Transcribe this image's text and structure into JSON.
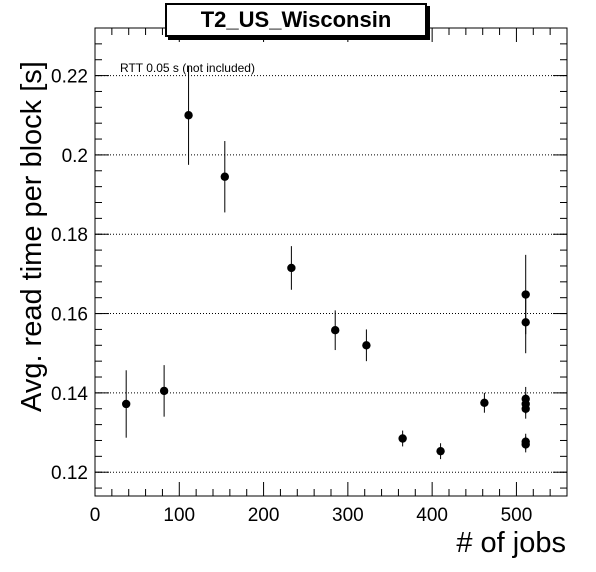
{
  "chart_data": {
    "type": "scatter",
    "title": "T2_US_Wisconsin",
    "xlabel": "# of jobs",
    "ylabel": "Avg. read time per block [s]",
    "annotation": "RTT 0.05 s (not included)",
    "xlim": [
      0,
      560
    ],
    "ylim": [
      0.114,
      0.232
    ],
    "xticks": [
      0,
      100,
      200,
      300,
      400,
      500
    ],
    "yticks": [
      0.12,
      0.14,
      0.16,
      0.18,
      0.2,
      0.22
    ],
    "ytick_labels": [
      "0.12",
      "0.14",
      "0.16",
      "0.18",
      "0.2",
      "0.22"
    ],
    "xtick_labels": [
      "0",
      "100",
      "200",
      "300",
      "400",
      "500"
    ],
    "grid": "y-dotted",
    "points": [
      {
        "x": 37,
        "y": 0.1372,
        "err": 0.0085
      },
      {
        "x": 82,
        "y": 0.1405,
        "err": 0.0065
      },
      {
        "x": 111,
        "y": 0.21,
        "err": 0.0125
      },
      {
        "x": 154,
        "y": 0.1945,
        "err": 0.009
      },
      {
        "x": 233,
        "y": 0.1715,
        "err": 0.0055
      },
      {
        "x": 285,
        "y": 0.1558,
        "err": 0.005
      },
      {
        "x": 322,
        "y": 0.152,
        "err": 0.004
      },
      {
        "x": 365,
        "y": 0.1285,
        "err": 0.002
      },
      {
        "x": 410,
        "y": 0.1253,
        "err": 0.002
      },
      {
        "x": 462,
        "y": 0.1375,
        "err": 0.0025
      },
      {
        "x": 511,
        "y": 0.1648,
        "err": 0.01
      },
      {
        "x": 511,
        "y": 0.1578,
        "err": 0.0078
      },
      {
        "x": 511,
        "y": 0.1385,
        "err": 0.003
      },
      {
        "x": 511,
        "y": 0.1372,
        "err": 0.0025
      },
      {
        "x": 511,
        "y": 0.136,
        "err": 0.0025
      },
      {
        "x": 511,
        "y": 0.1277,
        "err": 0.002
      },
      {
        "x": 511,
        "y": 0.127,
        "err": 0.002
      }
    ]
  }
}
